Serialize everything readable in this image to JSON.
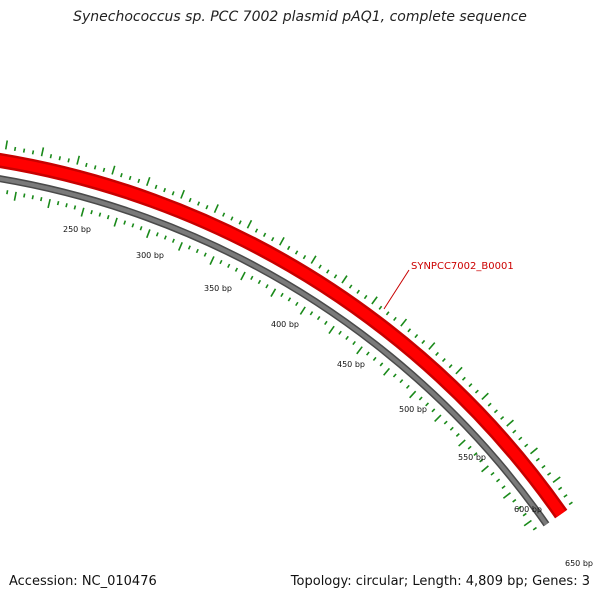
{
  "title": "Synechococcus sp. PCC 7002 plasmid pAQ1, complete sequence",
  "footer": {
    "accession": "Accession: NC_010476",
    "summary": "Topology: circular; Length: 4,809 bp; Genes: 3"
  },
  "colors": {
    "gene": "#ff0000",
    "gene_edge": "#c80000",
    "backbone": "#7a7a7a",
    "backbone_edge": "#4a4a4a",
    "gc_ticks": "#1a8a1a"
  },
  "genes": [
    {
      "label": "SYNPCC7002_B0001"
    }
  ],
  "scale": {
    "ticks": [
      {
        "label": "250 bp"
      },
      {
        "label": "300 bp"
      },
      {
        "label": "350 bp"
      },
      {
        "label": "400 bp"
      },
      {
        "label": "450 bp"
      },
      {
        "label": "500 bp"
      },
      {
        "label": "550 bp"
      },
      {
        "label": "600 bp"
      },
      {
        "label": "650 bp"
      }
    ]
  }
}
